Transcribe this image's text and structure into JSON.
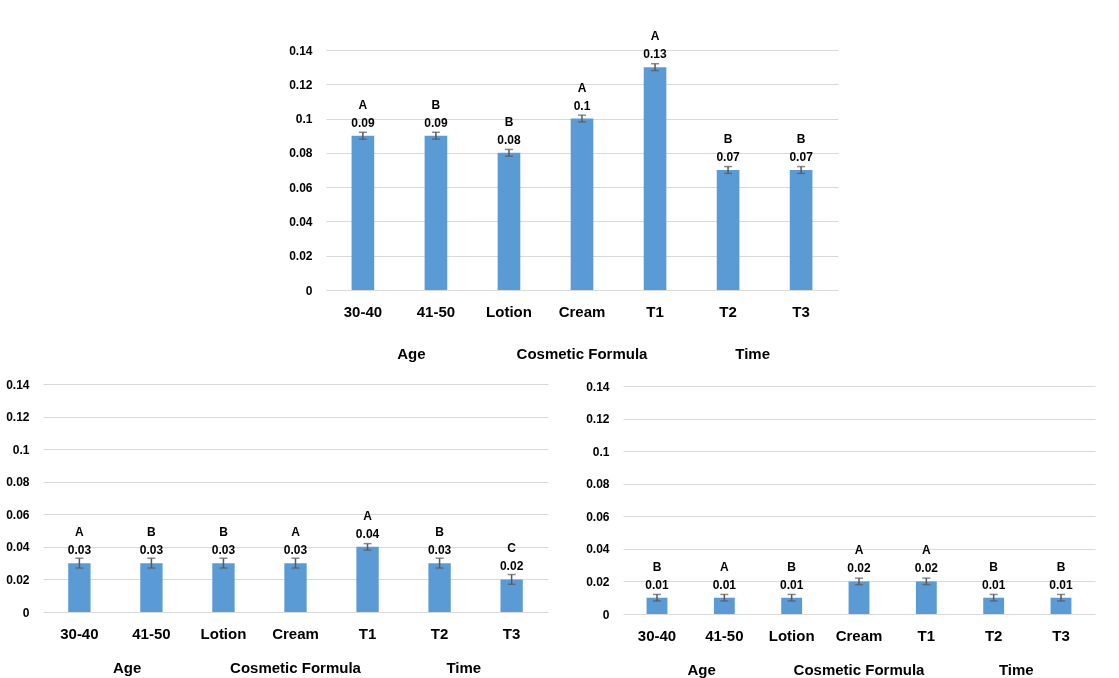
{
  "chart_data": [
    {
      "type": "bar",
      "categories": [
        "30-40",
        "41-50",
        "Lotion",
        "Cream",
        "T1",
        "T2",
        "T3"
      ],
      "values": [
        0.09,
        0.09,
        0.08,
        0.1,
        0.13,
        0.07,
        0.07
      ],
      "color": "#5b9bd5",
      "errors": [
        0.002,
        0.002,
        0.002,
        0.002,
        0.002,
        0.002,
        0.002
      ],
      "ylim": [
        0,
        0.14
      ],
      "yticks": [
        0,
        0.02,
        0.04,
        0.06,
        0.08,
        0.1,
        0.12,
        0.14
      ],
      "grid": "y",
      "data_labels": true,
      "annotations": [
        {
          "text": "A",
          "x": "30-40",
          "y": 0.09
        },
        {
          "text": "B",
          "x": "41-50",
          "y": 0.09
        },
        {
          "text": "B",
          "x": "Lotion",
          "y": 0.08
        },
        {
          "text": "A",
          "x": "Cream",
          "y": 0.1
        },
        {
          "text": "A",
          "x": "T1",
          "y": 0.13
        },
        {
          "text": "B",
          "x": "T2",
          "y": 0.07
        },
        {
          "text": "B",
          "x": "T3",
          "y": 0.07
        },
        "Age",
        "Cosmetic Formula",
        "Time"
      ]
    },
    {
      "type": "bar",
      "categories": [
        "30-40",
        "41-50",
        "Lotion",
        "Cream",
        "T1",
        "T2",
        "T3"
      ],
      "values": [
        0.03,
        0.03,
        0.03,
        0.03,
        0.04,
        0.03,
        0.02
      ],
      "color": "#5b9bd5",
      "errors": [
        0.003,
        0.003,
        0.003,
        0.003,
        0.002,
        0.003,
        0.003
      ],
      "ylim": [
        0,
        0.14
      ],
      "yticks": [
        0,
        0.02,
        0.04,
        0.06,
        0.08,
        0.1,
        0.12,
        0.14
      ],
      "grid": "y",
      "data_labels": true,
      "annotations": [
        {
          "text": "A",
          "x": "30-40",
          "y": 0.03
        },
        {
          "text": "B",
          "x": "41-50",
          "y": 0.03
        },
        {
          "text": "B",
          "x": "Lotion",
          "y": 0.03
        },
        {
          "text": "A",
          "x": "Cream",
          "y": 0.03
        },
        {
          "text": "A",
          "x": "T1",
          "y": 0.04
        },
        {
          "text": "B",
          "x": "T2",
          "y": 0.03
        },
        {
          "text": "C",
          "x": "T3",
          "y": 0.02
        },
        "Age",
        "Cosmetic Formula",
        "Time"
      ]
    },
    {
      "type": "bar",
      "categories": [
        "30-40",
        "41-50",
        "Lotion",
        "Cream",
        "T1",
        "T2",
        "T3"
      ],
      "values": [
        0.01,
        0.01,
        0.01,
        0.02,
        0.02,
        0.01,
        0.01
      ],
      "color": "#5b9bd5",
      "errors": [
        0.002,
        0.002,
        0.002,
        0.002,
        0.002,
        0.002,
        0.002
      ],
      "ylim": [
        0,
        0.14
      ],
      "yticks": [
        0,
        0.02,
        0.04,
        0.06,
        0.08,
        0.1,
        0.12,
        0.14
      ],
      "grid": "y",
      "data_labels": true,
      "annotations": [
        {
          "text": "B",
          "x": "30-40",
          "y": 0.01
        },
        {
          "text": "A",
          "x": "41-50",
          "y": 0.01
        },
        {
          "text": "B",
          "x": "Lotion",
          "y": 0.01
        },
        {
          "text": "A",
          "x": "Cream",
          "y": 0.02
        },
        {
          "text": "A",
          "x": "T1",
          "y": 0.02
        },
        {
          "text": "B",
          "x": "T2",
          "y": 0.01
        },
        {
          "text": "B",
          "x": "T3",
          "y": 0.01
        },
        "Age",
        "Cosmetic Formula",
        "Time"
      ]
    }
  ]
}
